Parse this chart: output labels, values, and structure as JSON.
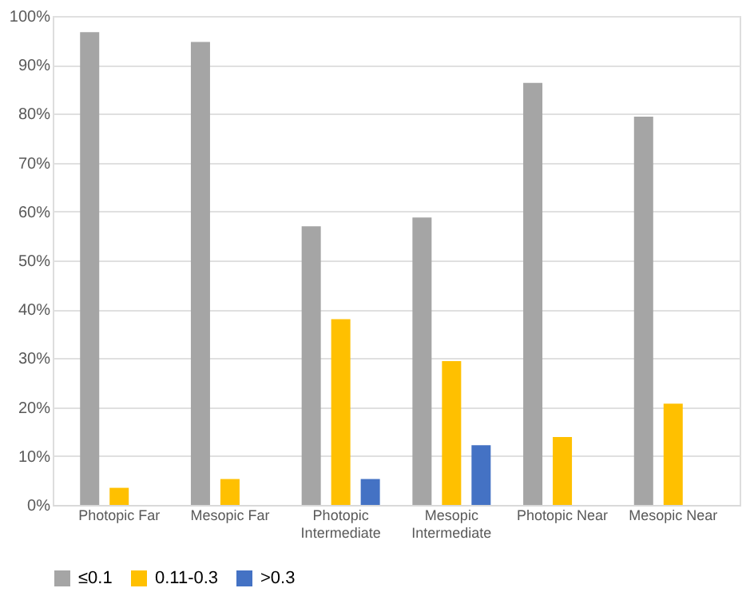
{
  "chart_data": {
    "type": "bar",
    "categories": [
      "Photopic Far",
      "Mesopic Far",
      "Photopic Intermediate",
      "Mesopic Intermediate",
      "Photopic Near",
      "Mesopic Near"
    ],
    "series": [
      {
        "name": "≤0.1",
        "color": "#a5a5a5",
        "values": [
          96.7,
          94.7,
          57.0,
          58.8,
          86.3,
          79.4
        ]
      },
      {
        "name": "0.11-0.3",
        "color": "#ffc000",
        "values": [
          3.5,
          5.3,
          38.0,
          29.4,
          13.9,
          20.7
        ]
      },
      {
        "name": ">0.3",
        "color": "#4472c4",
        "values": [
          null,
          null,
          5.3,
          12.2,
          null,
          null
        ]
      }
    ],
    "ylim": [
      0,
      100
    ],
    "yticks": [
      {
        "value": 0,
        "label": "0%"
      },
      {
        "value": 10,
        "label": "10%"
      },
      {
        "value": 20,
        "label": "20%"
      },
      {
        "value": 30,
        "label": "30%"
      },
      {
        "value": 40,
        "label": "40%"
      },
      {
        "value": 50,
        "label": "50%"
      },
      {
        "value": 60,
        "label": "60%"
      },
      {
        "value": 70,
        "label": "70%"
      },
      {
        "value": 80,
        "label": "80%"
      },
      {
        "value": 90,
        "label": "90%"
      },
      {
        "value": 100,
        "label": "100%"
      }
    ],
    "grid": "y",
    "legend": "bottom"
  }
}
